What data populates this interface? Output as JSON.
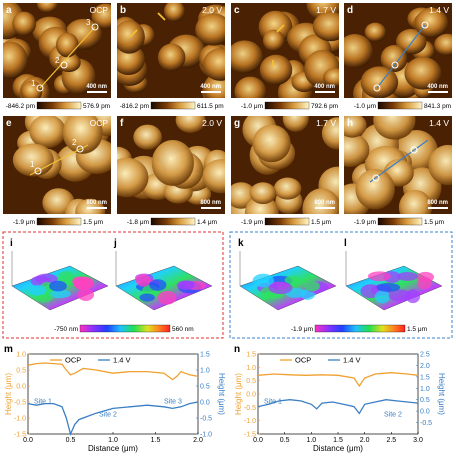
{
  "afm_row1": [
    {
      "letter": "a",
      "condition": "OCP",
      "scale": "400 nm",
      "cmin": "-846.2 pm",
      "cmax": "576.9 pm",
      "points": [
        "1",
        "2",
        "3"
      ]
    },
    {
      "letter": "b",
      "condition": "2.0 V",
      "scale": "400 nm",
      "cmin": "-816.2 pm",
      "cmax": "611.5 pm"
    },
    {
      "letter": "c",
      "condition": "1.7 V",
      "scale": "400 nm",
      "cmin": "-1.0 μm",
      "cmax": "792.6 pm"
    },
    {
      "letter": "d",
      "condition": "1.4 V",
      "scale": "400 nm",
      "cmin": "-1.0 μm",
      "cmax": "841.3 pm"
    }
  ],
  "afm_row2": [
    {
      "letter": "e",
      "condition": "OCP",
      "scale": "800 nm",
      "cmin": "-1.9 μm",
      "cmax": "1.5 μm",
      "points": [
        "1",
        "2"
      ]
    },
    {
      "letter": "f",
      "condition": "2.0 V",
      "scale": "800 nm",
      "cmin": "-1.8 μm",
      "cmax": "1.4 μm"
    },
    {
      "letter": "g",
      "condition": "1.7 V",
      "scale": "800 nm",
      "cmin": "-1.9 μm",
      "cmax": "1.5 μm"
    },
    {
      "letter": "h",
      "condition": "1.4 V",
      "scale": "800 nm",
      "cmin": "-1.9 μm",
      "cmax": "1.5 μm"
    }
  ],
  "panels_3d": {
    "left": {
      "letters": [
        "i",
        "j"
      ],
      "cmin": "-750 nm",
      "cmax": "560 nm",
      "box_color": "#e03030"
    },
    "right": {
      "letters": [
        "k",
        "l"
      ],
      "cmin": "-1.9 μm",
      "cmax": "1.5 μm",
      "box_color": "#3a7fd0"
    }
  },
  "colors": {
    "ocp": "#f0a030",
    "v14": "#3a7fc4",
    "afm_dark": "#3a1a00",
    "afm_light": "#fff0b0"
  },
  "chart_data": [
    {
      "type": "line",
      "panel": "m",
      "legend": [
        "OCP",
        "1.4 V"
      ],
      "xlabel": "Distance (μm)",
      "ylabel_left": "Height (μm)",
      "ylabel_right": "Height (μm)",
      "xlim": [
        0,
        2.0
      ],
      "xticks": [
        "0.0",
        "0.5",
        "1.0",
        "1.5",
        "2.0"
      ],
      "ylim_left": [
        -1.5,
        1.0
      ],
      "yticks_left": [
        "-1.5",
        "-1.0",
        "-0.5",
        "0.0",
        "0.5",
        "1.0"
      ],
      "ylim_right": [
        -1.0,
        1.5
      ],
      "yticks_right": [
        "-1.0",
        "-0.5",
        "0.0",
        "0.5",
        "1.0",
        "1.5"
      ],
      "annotations": [
        "Site 1",
        "Site 2",
        "Site 3"
      ],
      "series": [
        {
          "name": "OCP",
          "axis": "left",
          "x": [
            0,
            0.1,
            0.2,
            0.3,
            0.4,
            0.45,
            0.5,
            0.55,
            0.65,
            0.8,
            1.0,
            1.2,
            1.4,
            1.6,
            1.7,
            1.75,
            1.8,
            1.9,
            2.0
          ],
          "y": [
            0.65,
            0.7,
            0.72,
            0.7,
            0.68,
            0.5,
            0.35,
            0.4,
            0.55,
            0.5,
            0.4,
            0.45,
            0.45,
            0.4,
            0.2,
            0.3,
            0.45,
            0.35,
            0.3
          ]
        },
        {
          "name": "1.4 V",
          "axis": "right",
          "x": [
            0,
            0.1,
            0.2,
            0.3,
            0.4,
            0.45,
            0.5,
            0.55,
            0.6,
            0.7,
            0.8,
            1.0,
            1.2,
            1.4,
            1.6,
            1.7,
            1.8,
            1.9,
            2.0
          ],
          "y": [
            -0.05,
            -0.1,
            -0.05,
            -0.05,
            -0.15,
            -0.5,
            -1.0,
            -0.7,
            -0.55,
            -0.45,
            -0.35,
            -0.2,
            -0.15,
            -0.1,
            -0.15,
            -0.2,
            -0.15,
            -0.05,
            0.0
          ]
        }
      ]
    },
    {
      "type": "line",
      "panel": "n",
      "legend": [
        "OCP",
        "1.4 V"
      ],
      "xlabel": "Distance (μm)",
      "ylabel_left": "Height (μm)",
      "ylabel_right": "Height (μm)",
      "xlim": [
        0,
        3.0
      ],
      "xticks": [
        "0.0",
        "0.5",
        "1.0",
        "1.5",
        "2.0",
        "2.5",
        "3.0"
      ],
      "ylim_left": [
        -1.5,
        1.5
      ],
      "yticks_left": [
        "-1.5",
        "-1.0",
        "-0.5",
        "0.0",
        "0.5",
        "1.0",
        "1.5"
      ],
      "ylim_right": [
        -1.0,
        2.5
      ],
      "yticks_right": [
        "-0.5",
        "0.0",
        "0.5",
        "1.0",
        "1.5",
        "2.0",
        "2.5"
      ],
      "annotations": [
        "Site 1",
        "Site 2"
      ],
      "series": [
        {
          "name": "OCP",
          "axis": "left",
          "x": [
            0,
            0.3,
            0.6,
            0.9,
            1.2,
            1.5,
            1.8,
            1.9,
            2.0,
            2.2,
            2.5,
            2.8,
            3.0
          ],
          "y": [
            0.7,
            0.75,
            0.72,
            0.7,
            0.72,
            0.7,
            0.6,
            0.3,
            0.6,
            0.75,
            0.8,
            0.75,
            0.7
          ]
        },
        {
          "name": "1.4 V",
          "axis": "right",
          "x": [
            0,
            0.2,
            0.4,
            0.6,
            0.8,
            1.0,
            1.1,
            1.2,
            1.4,
            1.6,
            1.8,
            1.9,
            2.0,
            2.2,
            2.4,
            2.6,
            2.8,
            3.0
          ],
          "y": [
            0.2,
            0.3,
            0.45,
            0.5,
            0.45,
            0.3,
            0.1,
            0.35,
            0.4,
            0.3,
            0.2,
            -0.1,
            0.3,
            0.4,
            0.5,
            0.45,
            0.4,
            0.35
          ]
        }
      ]
    }
  ]
}
